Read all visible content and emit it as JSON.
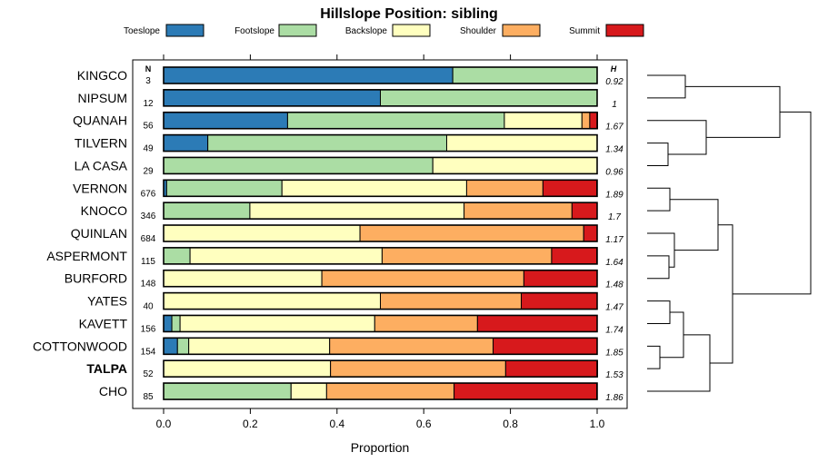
{
  "chart_data": {
    "type": "bar",
    "stacked": true,
    "orientation": "horizontal",
    "title": "Hillslope Position: sibling",
    "xlabel": "Proportion",
    "ylabel": "",
    "xlim": [
      0,
      1
    ],
    "x_ticks": [
      "0.0",
      "0.2",
      "0.4",
      "0.6",
      "0.8",
      "1.0"
    ],
    "n_header": "N",
    "h_header": "H",
    "legend_position": "top",
    "dendrogram": true,
    "series": [
      {
        "name": "Toeslope",
        "color": "#2c7bb6"
      },
      {
        "name": "Footslope",
        "color": "#abdda4"
      },
      {
        "name": "Backslope",
        "color": "#ffffbf"
      },
      {
        "name": "Shoulder",
        "color": "#fdae61"
      },
      {
        "name": "Summit",
        "color": "#d7191c"
      }
    ],
    "categories": [
      {
        "label": "KINGCO",
        "n": "3",
        "h": "0.92",
        "bold": false,
        "values": [
          0.667,
          0.333,
          0,
          0,
          0
        ]
      },
      {
        "label": "NIPSUM",
        "n": "12",
        "h": "1",
        "bold": false,
        "values": [
          0.5,
          0.5,
          0,
          0,
          0
        ]
      },
      {
        "label": "QUANAH",
        "n": "56",
        "h": "1.67",
        "bold": false,
        "values": [
          0.286,
          0.5,
          0.179,
          0.018,
          0.018
        ]
      },
      {
        "label": "TILVERN",
        "n": "49",
        "h": "1.34",
        "bold": false,
        "values": [
          0.102,
          0.551,
          0.347,
          0,
          0
        ]
      },
      {
        "label": "LA CASA",
        "n": "29",
        "h": "0.96",
        "bold": false,
        "values": [
          0,
          0.621,
          0.379,
          0,
          0
        ]
      },
      {
        "label": "VERNON",
        "n": "676",
        "h": "1.89",
        "bold": false,
        "values": [
          0.007,
          0.266,
          0.426,
          0.176,
          0.124
        ]
      },
      {
        "label": "KNOCO",
        "n": "346",
        "h": "1.7",
        "bold": false,
        "values": [
          0,
          0.199,
          0.494,
          0.249,
          0.058
        ]
      },
      {
        "label": "QUINLAN",
        "n": "684",
        "h": "1.17",
        "bold": false,
        "values": [
          0,
          0,
          0.453,
          0.516,
          0.031
        ]
      },
      {
        "label": "ASPERMONT",
        "n": "115",
        "h": "1.64",
        "bold": false,
        "values": [
          0,
          0.061,
          0.443,
          0.391,
          0.104
        ]
      },
      {
        "label": "BURFORD",
        "n": "148",
        "h": "1.48",
        "bold": false,
        "values": [
          0,
          0,
          0.365,
          0.466,
          0.169
        ]
      },
      {
        "label": "YATES",
        "n": "40",
        "h": "1.47",
        "bold": false,
        "values": [
          0,
          0,
          0.5,
          0.325,
          0.175
        ]
      },
      {
        "label": "KAVETT",
        "n": "156",
        "h": "1.74",
        "bold": false,
        "values": [
          0.019,
          0.019,
          0.449,
          0.237,
          0.276
        ]
      },
      {
        "label": "COTTONWOOD",
        "n": "154",
        "h": "1.85",
        "bold": false,
        "values": [
          0.032,
          0.026,
          0.325,
          0.377,
          0.24
        ]
      },
      {
        "label": "TALPA",
        "n": "52",
        "h": "1.53",
        "bold": true,
        "values": [
          0,
          0,
          0.385,
          0.404,
          0.212
        ]
      },
      {
        "label": "CHO",
        "n": "85",
        "h": "1.86",
        "bold": false,
        "values": [
          0,
          0.294,
          0.082,
          0.294,
          0.329
        ]
      }
    ]
  }
}
